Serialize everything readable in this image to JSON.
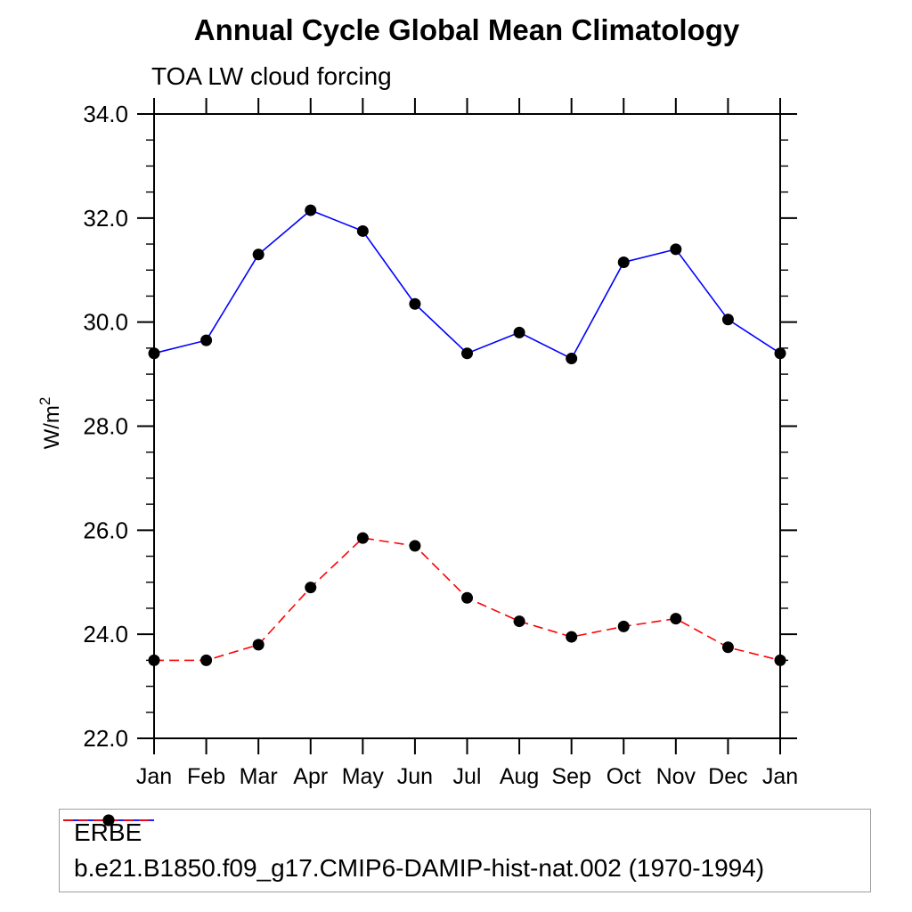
{
  "title": "Annual Cycle Global Mean Climatology",
  "subtitle": "TOA LW cloud forcing",
  "ylabel_main": "W/m",
  "ylabel_exp": "2",
  "colors": {
    "background": "#ffffff",
    "axis": "#000000",
    "marker": "#000000",
    "legend_border": "#9e9e9e",
    "series_blue": "#0000ff",
    "series_red": "#ff0000"
  },
  "chart_data": {
    "type": "line",
    "title": "Annual Cycle Global Mean Climatology",
    "subtitle": "TOA LW cloud forcing",
    "ylabel": "W/m^2",
    "x_categories": [
      "Jan",
      "Feb",
      "Mar",
      "Apr",
      "May",
      "Jun",
      "Jul",
      "Aug",
      "Sep",
      "Oct",
      "Nov",
      "Dec",
      "Jan"
    ],
    "ylim": [
      22.0,
      34.0
    ],
    "ytick_major_step": 2.0,
    "ytick_minor_step": 0.5,
    "ytick_labels": [
      "22.0",
      "24.0",
      "26.0",
      "28.0",
      "30.0",
      "32.0",
      "34.0"
    ],
    "grid": false,
    "legend_position": "bottom box, left-aligned",
    "series": [
      {
        "name": "ERBE",
        "color": "#0000ff",
        "line_style": "solid",
        "marker": "filled-circle",
        "values": [
          29.4,
          29.65,
          31.3,
          32.15,
          31.75,
          30.35,
          29.4,
          29.8,
          29.3,
          31.15,
          31.4,
          30.05,
          29.4
        ]
      },
      {
        "name": "b.e21.B1850.f09_g17.CMIP6-DAMIP-hist-nat.002 (1970-1994)",
        "color": "#ff0000",
        "line_style": "dashed",
        "marker": "filled-circle",
        "values": [
          23.5,
          23.5,
          23.8,
          24.9,
          25.85,
          25.7,
          24.7,
          24.25,
          23.95,
          24.15,
          24.3,
          23.75,
          23.5
        ]
      }
    ]
  }
}
